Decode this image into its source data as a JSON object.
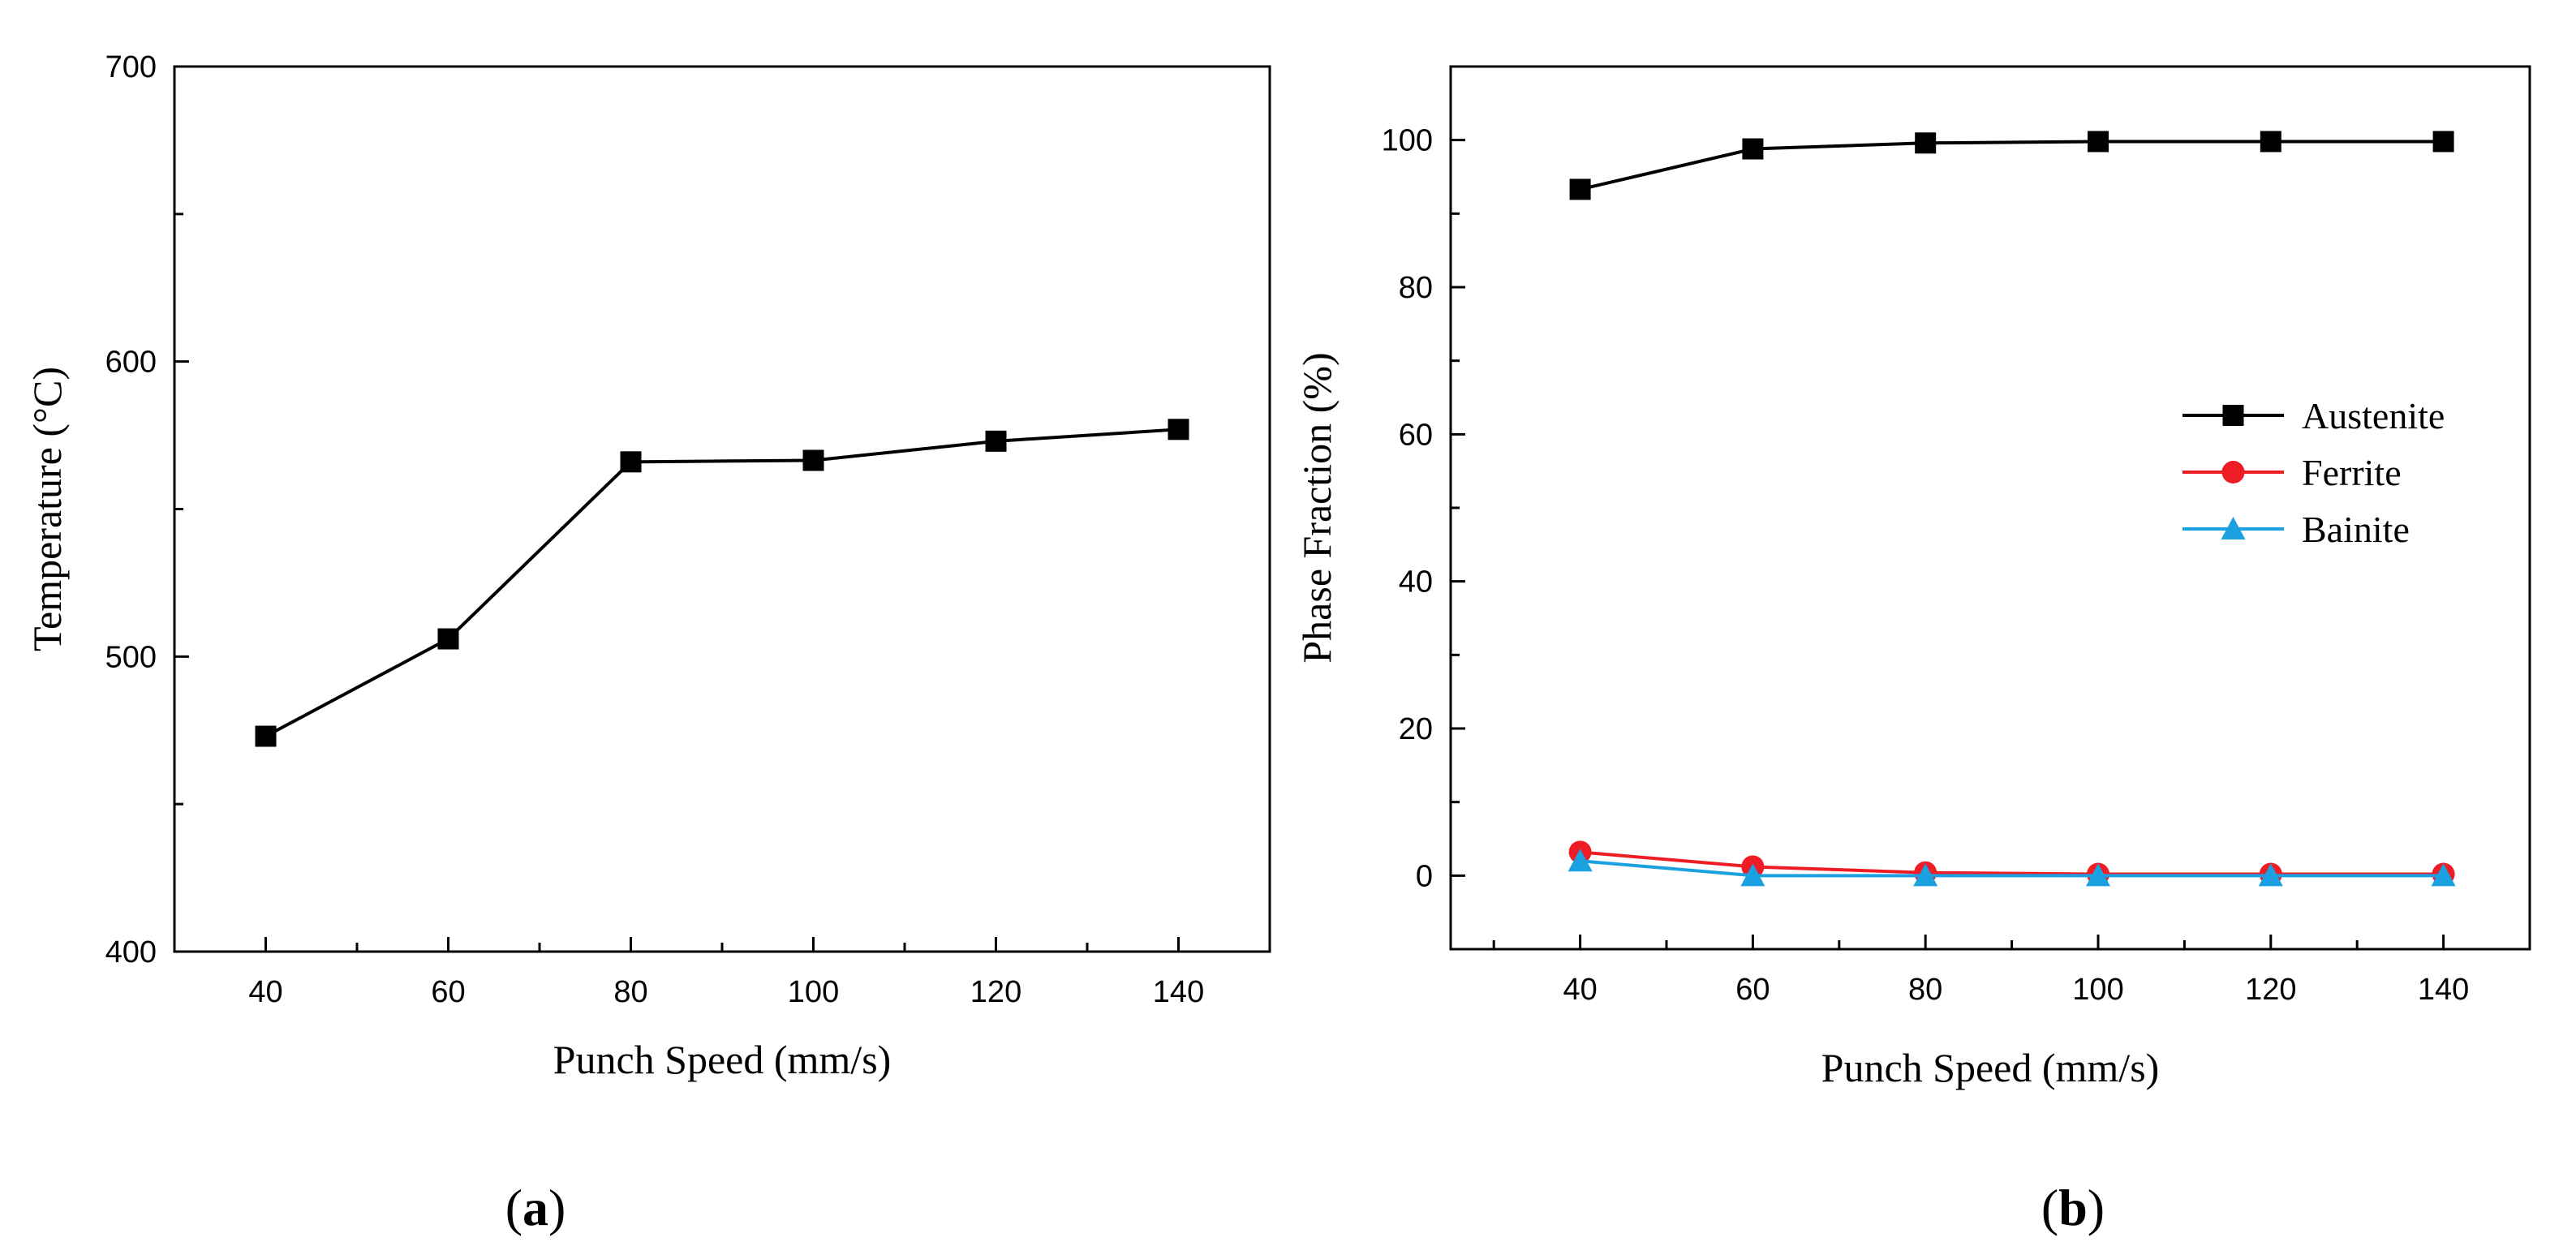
{
  "chart_data": [
    {
      "type": "line",
      "panel_label": "a",
      "xlabel": "Punch Speed (mm/s)",
      "ylabel": "Temperature (°C)",
      "xlim": [
        30,
        150
      ],
      "ylim": [
        400,
        700
      ],
      "x_ticks": [
        40,
        60,
        80,
        100,
        120,
        140
      ],
      "y_ticks": [
        400,
        500,
        600,
        700
      ],
      "legend": "none",
      "series": [
        {
          "name": "Temperature",
          "color": "#000000",
          "marker": "square",
          "x": [
            40,
            60,
            80,
            100,
            120,
            140
          ],
          "values": [
            473,
            506,
            566,
            566.5,
            573,
            577
          ]
        }
      ]
    },
    {
      "type": "line",
      "panel_label": "b",
      "xlabel": "Punch Speed (mm/s)",
      "ylabel": "Phase Fraction (%)",
      "xlim": [
        25,
        150
      ],
      "ylim": [
        -10,
        110
      ],
      "x_ticks": [
        40,
        60,
        80,
        100,
        120,
        140
      ],
      "y_ticks": [
        0,
        20,
        40,
        60,
        80,
        100
      ],
      "legend": "right",
      "series": [
        {
          "name": "Austenite",
          "color": "#000000",
          "marker": "square",
          "x": [
            40,
            60,
            80,
            100,
            120,
            140
          ],
          "values": [
            93.3,
            98.8,
            99.6,
            99.8,
            99.8,
            99.8
          ]
        },
        {
          "name": "Ferrite",
          "color": "#ee1c25",
          "marker": "circle",
          "x": [
            40,
            60,
            80,
            100,
            120,
            140
          ],
          "values": [
            3.2,
            1.2,
            0.4,
            0.2,
            0.2,
            0.2
          ]
        },
        {
          "name": "Bainite",
          "color": "#1ba1e2",
          "marker": "triangle",
          "x": [
            40,
            60,
            80,
            100,
            120,
            140
          ],
          "values": [
            2.0,
            0.0,
            0.0,
            0.0,
            0.0,
            0.0
          ]
        }
      ]
    }
  ]
}
